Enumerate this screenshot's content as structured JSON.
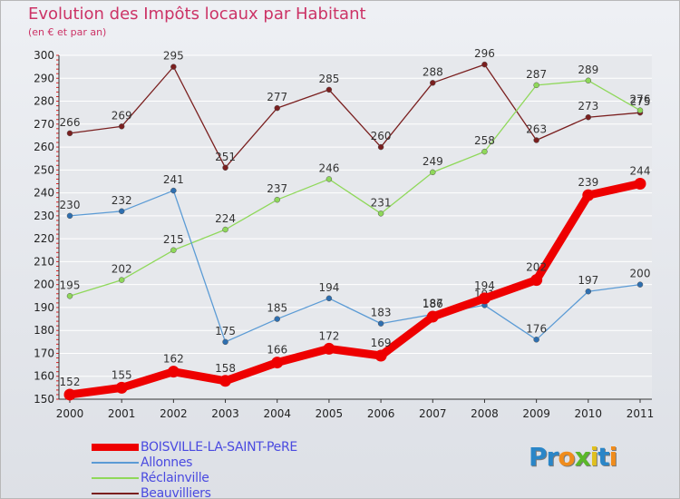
{
  "title": "Evolution des Impôts locaux par Habitant",
  "subtitle": "(en € et par an)",
  "logo": {
    "text": "ProXiti",
    "letters": [
      "P",
      "r",
      "o",
      "x",
      "i",
      "t",
      "i"
    ],
    "colors": [
      "#2a86c8",
      "#2a86c8",
      "#f08c1c",
      "#5ab82a",
      "#e0c020",
      "#2a86c8",
      "#f08c1c"
    ]
  },
  "chart_data": {
    "type": "line",
    "title": "Evolution des Impôts locaux par Habitant",
    "subtitle": "(en € et par an)",
    "x": [
      "2000",
      "2001",
      "2002",
      "2003",
      "2004",
      "2005",
      "2006",
      "2007",
      "2008",
      "2009",
      "2010",
      "2011"
    ],
    "ylim": [
      150,
      300
    ],
    "yticks": [
      150,
      160,
      170,
      180,
      190,
      200,
      210,
      220,
      230,
      240,
      250,
      260,
      270,
      280,
      290,
      300
    ],
    "grid": true,
    "legend_position": "bottom-left",
    "series": [
      {
        "name": "BOISVILLE-LA-SAINT-PeRE",
        "color": "#ee0000",
        "values": [
          152,
          155,
          162,
          158,
          166,
          172,
          169,
          186,
          194,
          202,
          239,
          244
        ],
        "labels": [
          "152",
          "155",
          "162",
          "158",
          "166",
          "172",
          "169",
          "186",
          "194",
          "202",
          "239",
          "244"
        ]
      },
      {
        "name": "Allonnes",
        "color": "#5b9bd5",
        "values": [
          230,
          232,
          241,
          175,
          185,
          194,
          183,
          187,
          191,
          176,
          197,
          200
        ],
        "labels": [
          "230",
          "232",
          "241",
          "175",
          "185",
          "194",
          "183",
          "187",
          "191",
          "176",
          "197",
          "200"
        ]
      },
      {
        "name": "Réclainville",
        "color": "#8fd85a",
        "values": [
          195,
          202,
          215,
          224,
          237,
          246,
          231,
          249,
          258,
          287,
          289,
          276
        ],
        "labels": [
          "195",
          "202",
          "215",
          "224",
          "237",
          "246",
          "231",
          "249",
          "258",
          "287",
          "289",
          "276"
        ]
      },
      {
        "name": "Beauvilliers",
        "color": "#7a1f1f",
        "values": [
          266,
          269,
          295,
          251,
          277,
          285,
          260,
          288,
          296,
          263,
          273,
          275
        ],
        "labels": [
          "266",
          "269",
          "295",
          "251",
          "277",
          "285",
          "260",
          "288",
          "296",
          "263",
          "273",
          "275"
        ]
      }
    ]
  }
}
